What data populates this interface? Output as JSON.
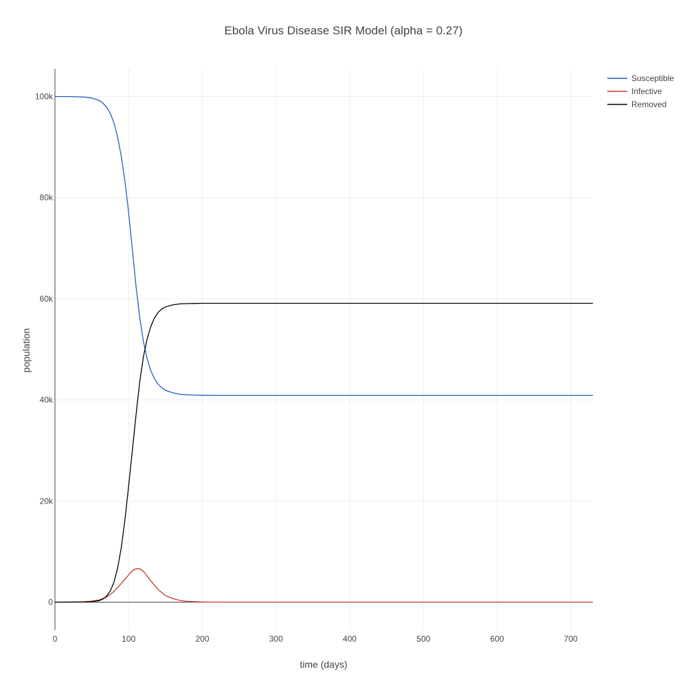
{
  "chart_data": {
    "type": "line",
    "title": "Ebola Virus Disease SIR Model (alpha = 0.27)",
    "xlabel": "time (days)",
    "ylabel": "population",
    "xlim": [
      0,
      730
    ],
    "ylim": [
      -5500,
      105500
    ],
    "x_ticks": [
      0,
      100,
      200,
      300,
      400,
      500,
      600,
      700
    ],
    "x_tick_labels": [
      "0",
      "100",
      "200",
      "300",
      "400",
      "500",
      "600",
      "700"
    ],
    "y_ticks": [
      0,
      20000,
      40000,
      60000,
      80000,
      100000
    ],
    "y_tick_labels": [
      "0",
      "20k",
      "40k",
      "60k",
      "80k",
      "100k"
    ],
    "grid": true,
    "legend_position": "top-right",
    "series": [
      {
        "name": "Susceptible",
        "color": "#1f5fbf",
        "x": [
          0,
          20,
          40,
          50,
          60,
          65,
          70,
          75,
          80,
          85,
          90,
          95,
          100,
          105,
          110,
          115,
          120,
          125,
          130,
          135,
          140,
          145,
          150,
          160,
          170,
          180,
          190,
          200,
          220,
          250,
          300,
          400,
          500,
          600,
          700,
          730
        ],
        "y": [
          100000,
          99980,
          99900,
          99700,
          99200,
          98700,
          97900,
          96700,
          94800,
          92000,
          88200,
          83200,
          77000,
          69800,
          62500,
          56300,
          51600,
          48200,
          45800,
          44200,
          43100,
          42400,
          41900,
          41400,
          41100,
          41000,
          40950,
          40920,
          40900,
          40900,
          40900,
          40900,
          40900,
          40900,
          40900,
          40900
        ]
      },
      {
        "name": "Infective",
        "color": "#c0392b",
        "x": [
          0,
          20,
          40,
          50,
          60,
          70,
          80,
          90,
          100,
          105,
          110,
          115,
          120,
          125,
          130,
          140,
          150,
          160,
          170,
          180,
          200,
          250,
          300,
          400,
          500,
          600,
          730
        ],
        "y": [
          0,
          20,
          80,
          200,
          450,
          1000,
          2100,
          3700,
          5400,
          6200,
          6600,
          6600,
          6100,
          5200,
          4200,
          2500,
          1300,
          700,
          330,
          150,
          40,
          0,
          0,
          0,
          0,
          0,
          0
        ]
      },
      {
        "name": "Removed",
        "color": "#000000",
        "x": [
          0,
          20,
          40,
          50,
          60,
          65,
          70,
          75,
          80,
          85,
          90,
          95,
          100,
          105,
          110,
          115,
          120,
          125,
          130,
          135,
          140,
          145,
          150,
          160,
          170,
          180,
          190,
          200,
          220,
          250,
          300,
          400,
          500,
          600,
          700,
          730
        ],
        "y": [
          0,
          10,
          40,
          100,
          300,
          600,
          1200,
          2200,
          3900,
          6700,
          10800,
          16300,
          23000,
          30000,
          37000,
          43500,
          48500,
          52000,
          54500,
          56200,
          57300,
          58000,
          58400,
          58800,
          59000,
          59050,
          59080,
          59100,
          59100,
          59100,
          59100,
          59100,
          59100,
          59100,
          59100,
          59100
        ]
      }
    ]
  }
}
